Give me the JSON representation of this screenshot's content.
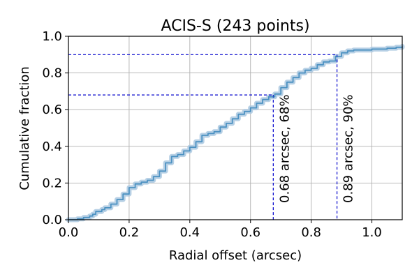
{
  "chart_data": {
    "type": "line",
    "title": "ACIS-S (243 points)",
    "xlabel": "Radial offset (arcsec)",
    "ylabel": "Cumulative fraction",
    "xlim": [
      0.0,
      1.1
    ],
    "ylim": [
      0.0,
      1.0
    ],
    "grid": true,
    "x_ticks": [
      "0.0",
      "0.2",
      "0.4",
      "0.6",
      "0.8",
      "1.0"
    ],
    "y_ticks": [
      "0.0",
      "0.2",
      "0.4",
      "0.6",
      "0.8",
      "1.0"
    ],
    "series": [
      {
        "color": "#1f77b4",
        "band_color": "#aac8e0",
        "x": [
          0.0,
          0.03,
          0.05,
          0.07,
          0.08,
          0.09,
          0.11,
          0.12,
          0.14,
          0.16,
          0.18,
          0.2,
          0.22,
          0.24,
          0.26,
          0.28,
          0.3,
          0.32,
          0.34,
          0.36,
          0.38,
          0.4,
          0.42,
          0.44,
          0.46,
          0.48,
          0.5,
          0.52,
          0.54,
          0.56,
          0.58,
          0.6,
          0.62,
          0.64,
          0.66,
          0.68,
          0.7,
          0.72,
          0.74,
          0.76,
          0.78,
          0.8,
          0.82,
          0.84,
          0.86,
          0.88,
          0.9,
          0.92,
          0.94,
          1.0,
          1.05,
          1.08,
          1.1
        ],
        "y": [
          0.0,
          0.005,
          0.012,
          0.02,
          0.03,
          0.045,
          0.055,
          0.065,
          0.085,
          0.11,
          0.14,
          0.175,
          0.195,
          0.205,
          0.215,
          0.235,
          0.265,
          0.31,
          0.345,
          0.355,
          0.375,
          0.395,
          0.425,
          0.46,
          0.47,
          0.48,
          0.505,
          0.525,
          0.55,
          0.575,
          0.59,
          0.61,
          0.635,
          0.655,
          0.67,
          0.685,
          0.72,
          0.75,
          0.775,
          0.8,
          0.815,
          0.825,
          0.845,
          0.86,
          0.865,
          0.89,
          0.91,
          0.92,
          0.925,
          0.93,
          0.935,
          0.94,
          0.945
        ]
      }
    ],
    "markers": [
      {
        "x": 0.675,
        "y": 0.68,
        "label": "0.68 arcsec, 68%",
        "color": "#0000cc"
      },
      {
        "x": 0.885,
        "y": 0.9,
        "label": "0.89 arcsec, 90%",
        "color": "#0000cc"
      }
    ]
  }
}
